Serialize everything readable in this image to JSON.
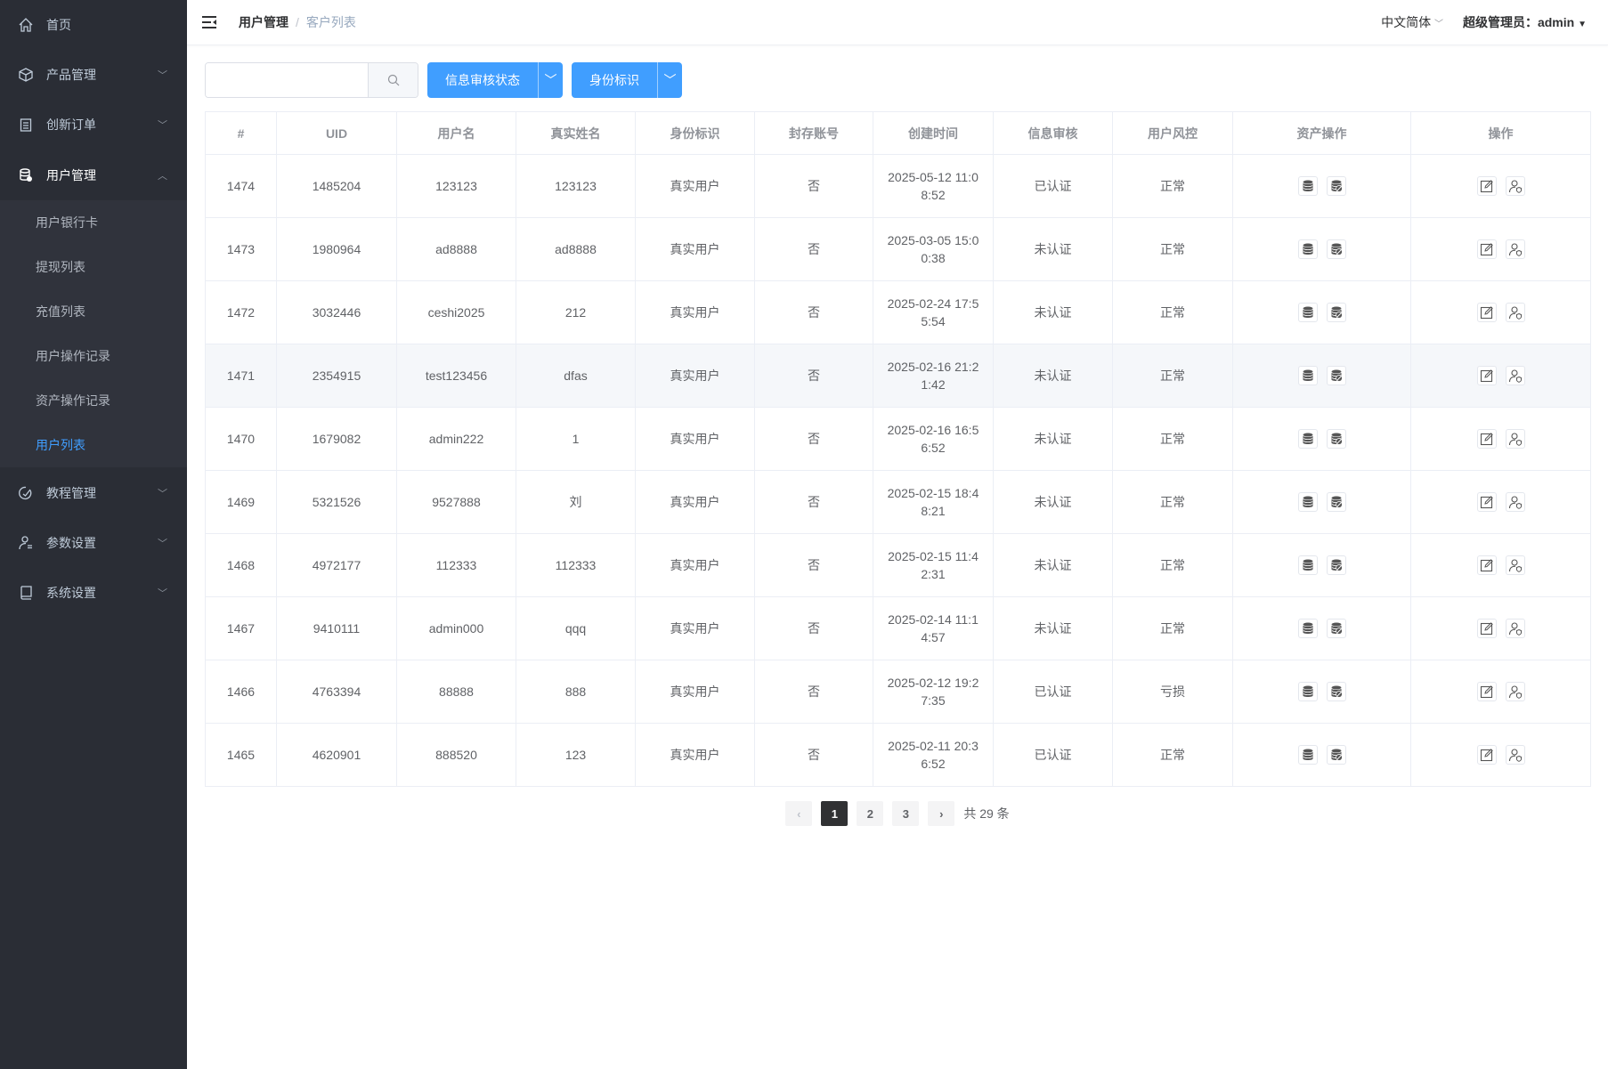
{
  "sidebar": {
    "items": [
      {
        "label": "首页",
        "icon": "home-icon",
        "chevron": ""
      },
      {
        "label": "产品管理",
        "icon": "box-icon",
        "chevron": "down"
      },
      {
        "label": "创新订单",
        "icon": "clipboard-icon",
        "chevron": "down"
      },
      {
        "label": "用户管理",
        "icon": "user-database-icon",
        "chevron": "up"
      },
      {
        "label": "教程管理",
        "icon": "check-circle-icon",
        "chevron": "down"
      },
      {
        "label": "参数设置",
        "icon": "user-settings-icon",
        "chevron": "down"
      },
      {
        "label": "系统设置",
        "icon": "book-icon",
        "chevron": "down"
      }
    ],
    "submenu": [
      "用户银行卡",
      "提现列表",
      "充值列表",
      "用户操作记录",
      "资产操作记录",
      "用户列表"
    ],
    "active_sub": "用户列表"
  },
  "header": {
    "breadcrumb": [
      "用户管理",
      "客户列表"
    ],
    "language": "中文简体",
    "user": "超级管理员：admin"
  },
  "toolbar": {
    "search_value": "",
    "filter1": "信息审核状态",
    "filter2": "身份标识"
  },
  "table": {
    "columns": [
      "#",
      "UID",
      "用户名",
      "真实姓名",
      "身份标识",
      "封存账号",
      "创建时间",
      "信息审核",
      "用户风控",
      "资产操作",
      "操作"
    ],
    "rows": [
      [
        "1474",
        "1485204",
        "123123",
        "123123",
        "真实用户",
        "否",
        "2025-05-12 11:08:52",
        "已认证",
        "正常"
      ],
      [
        "1473",
        "1980964",
        "ad8888",
        "ad8888",
        "真实用户",
        "否",
        "2025-03-05 15:00:38",
        "未认证",
        "正常"
      ],
      [
        "1472",
        "3032446",
        "ceshi2025",
        "212",
        "真实用户",
        "否",
        "2025-02-24 17:55:54",
        "未认证",
        "正常"
      ],
      [
        "1471",
        "2354915",
        "test123456",
        "dfas",
        "真实用户",
        "否",
        "2025-02-16 21:21:42",
        "未认证",
        "正常"
      ],
      [
        "1470",
        "1679082",
        "admin222",
        "1",
        "真实用户",
        "否",
        "2025-02-16 16:56:52",
        "未认证",
        "正常"
      ],
      [
        "1469",
        "5321526",
        "9527888",
        "刘",
        "真实用户",
        "否",
        "2025-02-15 18:48:21",
        "未认证",
        "正常"
      ],
      [
        "1468",
        "4972177",
        "112333",
        "112333",
        "真实用户",
        "否",
        "2025-02-15 11:42:31",
        "未认证",
        "正常"
      ],
      [
        "1467",
        "9410111",
        "admin000",
        "qqq",
        "真实用户",
        "否",
        "2025-02-14 11:14:57",
        "未认证",
        "正常"
      ],
      [
        "1466",
        "4763394",
        "88888",
        "888",
        "真实用户",
        "否",
        "2025-02-12 19:27:35",
        "已认证",
        "亏损"
      ],
      [
        "1465",
        "4620901",
        "888520",
        "123",
        "真实用户",
        "否",
        "2025-02-11 20:36:52",
        "已认证",
        "正常"
      ]
    ],
    "hovered_row": "1471"
  },
  "pagination": {
    "pages": [
      "1",
      "2",
      "3"
    ],
    "current": "1",
    "total": "共 29 条"
  },
  "colors": {
    "sidebar": "#2a2d35",
    "accent": "#409eff"
  }
}
